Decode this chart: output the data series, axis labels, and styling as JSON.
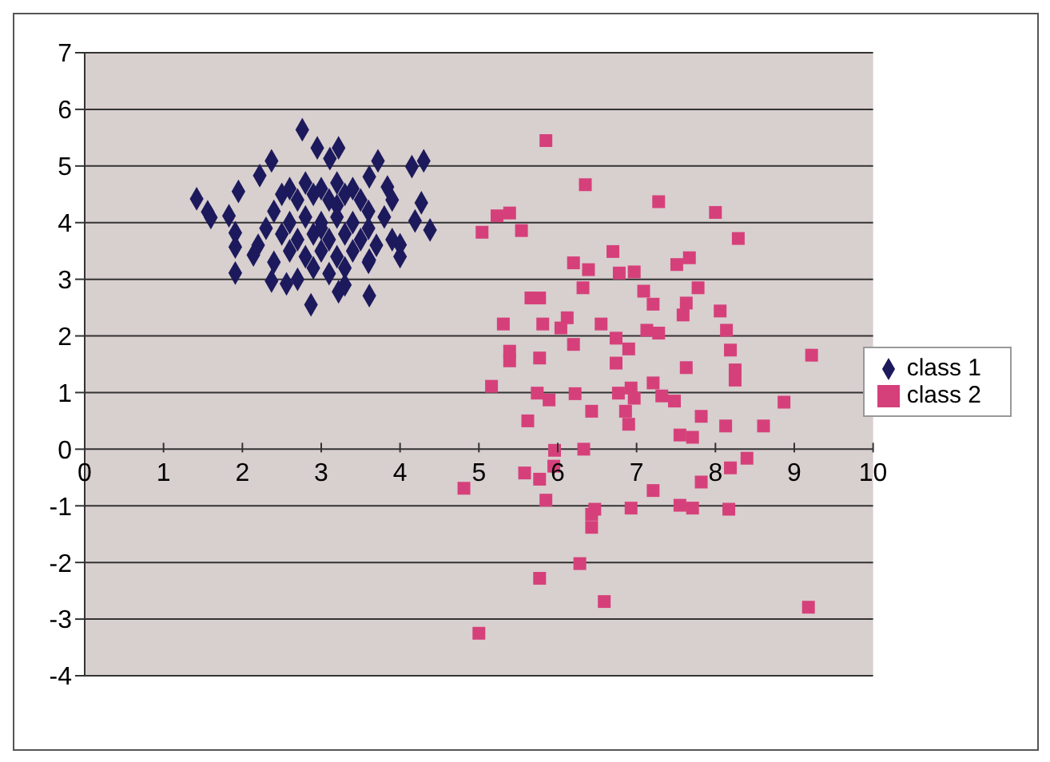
{
  "chart_data": {
    "type": "scatter",
    "xlim": [
      0,
      10
    ],
    "ylim": [
      -4,
      7
    ],
    "xticks": [
      0,
      1,
      2,
      3,
      4,
      5,
      6,
      7,
      8,
      9,
      10
    ],
    "yticks": [
      -4,
      -3,
      -2,
      -1,
      0,
      1,
      2,
      3,
      4,
      5,
      6,
      7
    ],
    "grid": "y",
    "legend": "right",
    "series": [
      {
        "name": "class 1",
        "color": "#1c1a5c",
        "marker": "diamond",
        "x": [
          2.76,
          2.95,
          3.22,
          3.11,
          2.37,
          3.72,
          4.15,
          4.3,
          2.22,
          1.95,
          1.42,
          1.56,
          1.6,
          1.83,
          1.91,
          1.91,
          2.14,
          1.91,
          2.37,
          2.56,
          2.87,
          3.22,
          3.61,
          3.61,
          4.0,
          4.27,
          4.38,
          4.19,
          3.84,
          3.61,
          2.5,
          2.6,
          2.7,
          2.8,
          2.9,
          3.0,
          3.1,
          3.2,
          3.3,
          3.4,
          3.5,
          3.6,
          2.6,
          2.8,
          3.0,
          3.2,
          3.4,
          3.6,
          2.5,
          2.7,
          2.9,
          3.1,
          3.3,
          3.5,
          3.7,
          2.6,
          2.8,
          3.0,
          3.2,
          3.4,
          3.6,
          2.9,
          3.1,
          3.3,
          3.0,
          3.2,
          2.4,
          2.3,
          3.8,
          3.9,
          2.2,
          2.4,
          3.9,
          4.0,
          2.7,
          3.3
        ],
        "values": [
          5.64,
          5.32,
          5.32,
          5.13,
          5.09,
          5.09,
          4.99,
          5.09,
          4.83,
          4.55,
          4.42,
          4.19,
          4.09,
          4.12,
          3.82,
          3.57,
          3.43,
          3.11,
          2.97,
          2.92,
          2.55,
          2.78,
          2.71,
          3.34,
          3.61,
          4.35,
          3.87,
          4.03,
          4.63,
          4.81,
          4.5,
          4.6,
          4.4,
          4.7,
          4.5,
          4.6,
          4.4,
          4.7,
          4.5,
          4.6,
          4.4,
          4.2,
          4.0,
          4.1,
          4.0,
          4.1,
          4.0,
          3.9,
          3.8,
          3.7,
          3.8,
          3.7,
          3.8,
          3.7,
          3.6,
          3.5,
          3.4,
          3.5,
          3.4,
          3.5,
          3.3,
          3.2,
          3.1,
          3.2,
          3.9,
          4.3,
          4.2,
          3.9,
          4.1,
          3.7,
          3.6,
          3.3,
          4.4,
          3.4,
          3.0,
          2.9
        ]
      },
      {
        "name": "class 2",
        "color": "#d6407a",
        "marker": "square",
        "x": [
          5.85,
          6.35,
          7.28,
          8.0,
          5.23,
          5.39,
          5.04,
          5.54,
          8.29,
          6.7,
          6.2,
          6.39,
          6.78,
          6.97,
          7.51,
          7.67,
          6.32,
          7.78,
          5.66,
          5.77,
          7.09,
          7.21,
          7.63,
          7.59,
          8.06,
          5.31,
          5.81,
          6.12,
          6.04,
          6.55,
          7.13,
          7.28,
          6.74,
          8.14,
          6.2,
          6.9,
          5.39,
          5.39,
          5.77,
          6.74,
          8.19,
          7.63,
          8.25,
          8.25,
          9.22,
          5.16,
          5.74,
          5.89,
          6.22,
          6.77,
          6.93,
          6.97,
          7.21,
          7.32,
          7.48,
          6.43,
          6.86,
          8.87,
          5.62,
          7.82,
          6.9,
          7.55,
          7.71,
          8.13,
          8.61,
          5.96,
          5.95,
          6.33,
          5.58,
          5.77,
          8.4,
          8.19,
          4.81,
          7.21,
          7.82,
          5.85,
          6.47,
          6.43,
          6.93,
          7.55,
          7.71,
          8.17,
          6.43,
          6.28,
          5.77,
          6.59,
          9.18,
          5.0
        ],
        "values": [
          5.45,
          4.67,
          4.37,
          4.18,
          4.12,
          4.17,
          3.83,
          3.86,
          3.72,
          3.49,
          3.29,
          3.17,
          3.11,
          3.13,
          3.26,
          3.38,
          2.85,
          2.85,
          2.67,
          2.67,
          2.79,
          2.56,
          2.58,
          2.37,
          2.44,
          2.21,
          2.21,
          2.32,
          2.14,
          2.21,
          2.1,
          2.05,
          1.96,
          2.1,
          1.85,
          1.77,
          1.73,
          1.56,
          1.61,
          1.52,
          1.75,
          1.44,
          1.4,
          1.22,
          1.66,
          1.11,
          0.99,
          0.87,
          0.98,
          0.99,
          1.08,
          0.9,
          1.17,
          0.94,
          0.85,
          0.67,
          0.67,
          0.83,
          0.5,
          0.58,
          0.44,
          0.25,
          0.21,
          0.41,
          0.41,
          -0.02,
          -0.3,
          0.0,
          -0.42,
          -0.53,
          -0.16,
          -0.33,
          -0.69,
          -0.73,
          -0.58,
          -0.9,
          -1.06,
          -1.15,
          -1.04,
          -0.99,
          -1.04,
          -1.06,
          -1.38,
          -2.02,
          -2.28,
          -2.69,
          -2.79,
          -3.25
        ]
      }
    ]
  }
}
